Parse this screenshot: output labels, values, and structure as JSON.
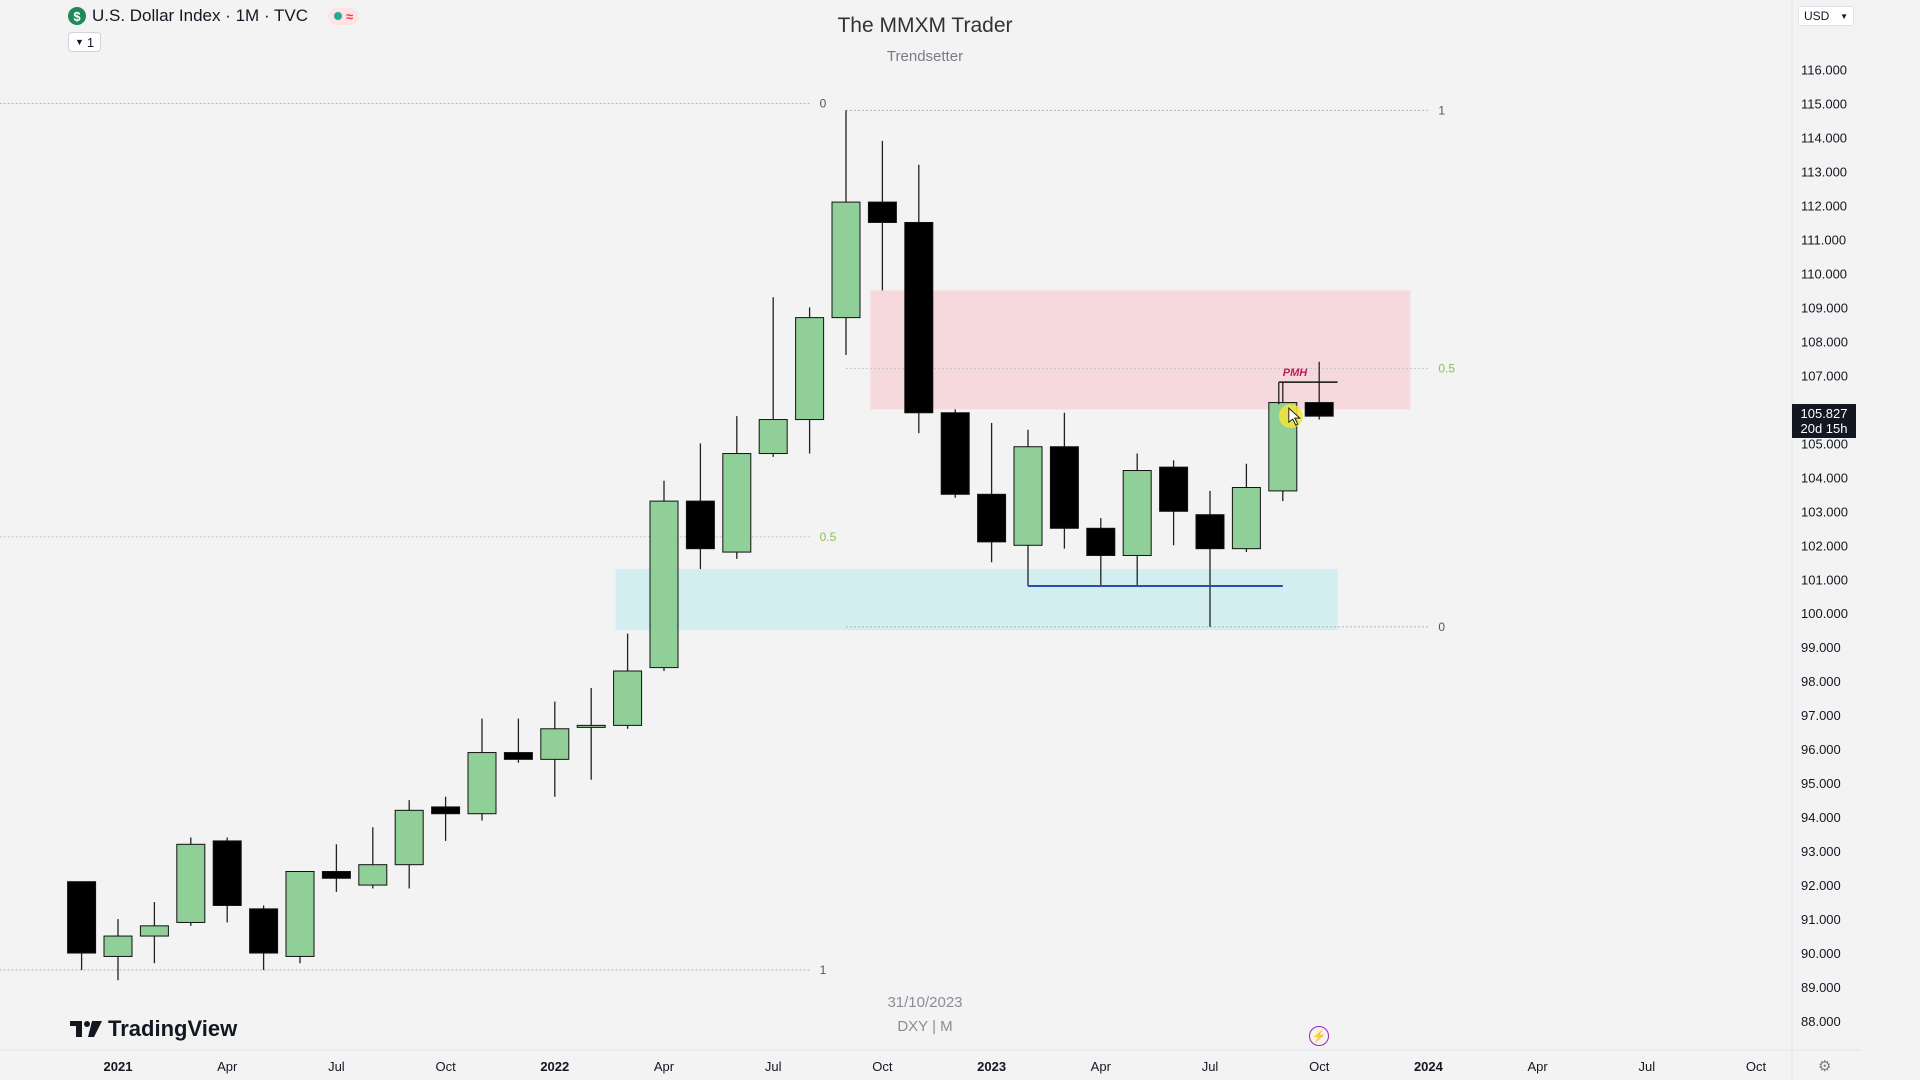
{
  "header": {
    "symbol_badge": "$",
    "title": "U.S. Dollar Index · 1M · TVC",
    "collapse_label": "1"
  },
  "watermark": {
    "title": "The MMXM Trader",
    "subtitle": "Trendsetter",
    "date": "31/10/2023",
    "symbol": "DXY | M"
  },
  "brand": {
    "logo_text": "TradingView"
  },
  "currency_select": {
    "value": "USD"
  },
  "price_tag": {
    "price": "105.827",
    "countdown": "20d 15h"
  },
  "colors": {
    "bull": "#91cf99",
    "bear": "#000000",
    "premium_zone": "#f6d9dc",
    "discount_zone": "#d3eef0",
    "fib_level": "#8bc34a",
    "low_line": "#2a4ea8",
    "pmh_label": "#c2185b"
  },
  "chart_data": {
    "type": "candlestick",
    "title": "",
    "xlabel": "",
    "ylabel": "",
    "ylim": [
      87.5,
      116.8
    ],
    "y_ticks": [
      "116.000",
      "115.000",
      "114.000",
      "113.000",
      "112.000",
      "111.000",
      "110.000",
      "109.000",
      "108.000",
      "107.000",
      "106.000",
      "105.000",
      "104.000",
      "103.000",
      "102.000",
      "101.000",
      "100.000",
      "99.000",
      "98.000",
      "97.000",
      "96.000",
      "95.000",
      "94.000",
      "93.000",
      "92.000",
      "91.000",
      "90.000",
      "89.000",
      "88.000"
    ],
    "x_ticks": [
      {
        "label": "2021",
        "date": "2021-01",
        "bold": true
      },
      {
        "label": "Apr",
        "date": "2021-04"
      },
      {
        "label": "Jul",
        "date": "2021-07"
      },
      {
        "label": "Oct",
        "date": "2021-10"
      },
      {
        "label": "2022",
        "date": "2022-01",
        "bold": true
      },
      {
        "label": "Apr",
        "date": "2022-04"
      },
      {
        "label": "Jul",
        "date": "2022-07"
      },
      {
        "label": "Oct",
        "date": "2022-10"
      },
      {
        "label": "2023",
        "date": "2023-01",
        "bold": true
      },
      {
        "label": "Apr",
        "date": "2023-04"
      },
      {
        "label": "Jul",
        "date": "2023-07"
      },
      {
        "label": "Oct",
        "date": "2023-10"
      },
      {
        "label": "2024",
        "date": "2024-01",
        "bold": true
      },
      {
        "label": "Apr",
        "date": "2024-04"
      },
      {
        "label": "Jul",
        "date": "2024-07"
      },
      {
        "label": "Oct",
        "date": "2024-10"
      }
    ],
    "candles": [
      {
        "date": "2020-12",
        "o": 92.1,
        "h": 92.1,
        "l": 89.5,
        "c": 90.0
      },
      {
        "date": "2021-01",
        "o": 89.9,
        "h": 91.0,
        "l": 89.2,
        "c": 90.5
      },
      {
        "date": "2021-02",
        "o": 90.5,
        "h": 91.5,
        "l": 89.7,
        "c": 90.8
      },
      {
        "date": "2021-03",
        "o": 90.9,
        "h": 93.4,
        "l": 90.8,
        "c": 93.2
      },
      {
        "date": "2021-04",
        "o": 93.3,
        "h": 93.4,
        "l": 90.9,
        "c": 91.4
      },
      {
        "date": "2021-05",
        "o": 91.3,
        "h": 91.4,
        "l": 89.5,
        "c": 90.0
      },
      {
        "date": "2021-06",
        "o": 89.9,
        "h": 92.4,
        "l": 89.7,
        "c": 92.4
      },
      {
        "date": "2021-07",
        "o": 92.4,
        "h": 93.2,
        "l": 91.8,
        "c": 92.2
      },
      {
        "date": "2021-08",
        "o": 92.0,
        "h": 93.7,
        "l": 91.9,
        "c": 92.6
      },
      {
        "date": "2021-09",
        "o": 92.6,
        "h": 94.5,
        "l": 91.9,
        "c": 94.2
      },
      {
        "date": "2021-10",
        "o": 94.3,
        "h": 94.6,
        "l": 93.3,
        "c": 94.1
      },
      {
        "date": "2021-11",
        "o": 94.1,
        "h": 96.9,
        "l": 93.9,
        "c": 95.9
      },
      {
        "date": "2021-12",
        "o": 95.9,
        "h": 96.9,
        "l": 95.6,
        "c": 95.7
      },
      {
        "date": "2022-01",
        "o": 95.7,
        "h": 97.4,
        "l": 94.6,
        "c": 96.6
      },
      {
        "date": "2022-02",
        "o": 96.7,
        "h": 97.8,
        "l": 95.1,
        "c": 96.7
      },
      {
        "date": "2022-03",
        "o": 96.7,
        "h": 99.4,
        "l": 96.6,
        "c": 98.3
      },
      {
        "date": "2022-04",
        "o": 98.4,
        "h": 103.9,
        "l": 98.3,
        "c": 103.3
      },
      {
        "date": "2022-05",
        "o": 103.3,
        "h": 105.0,
        "l": 101.3,
        "c": 101.9
      },
      {
        "date": "2022-06",
        "o": 101.8,
        "h": 105.8,
        "l": 101.6,
        "c": 104.7
      },
      {
        "date": "2022-07",
        "o": 104.7,
        "h": 109.3,
        "l": 104.6,
        "c": 105.7
      },
      {
        "date": "2022-08",
        "o": 105.7,
        "h": 109.0,
        "l": 104.7,
        "c": 108.7
      },
      {
        "date": "2022-09",
        "o": 108.7,
        "h": 114.8,
        "l": 107.6,
        "c": 112.1
      },
      {
        "date": "2022-10",
        "o": 112.1,
        "h": 113.9,
        "l": 109.5,
        "c": 111.5
      },
      {
        "date": "2022-11",
        "o": 111.5,
        "h": 113.2,
        "l": 105.3,
        "c": 105.9
      },
      {
        "date": "2022-12",
        "o": 105.9,
        "h": 106.0,
        "l": 103.4,
        "c": 103.5
      },
      {
        "date": "2023-01",
        "o": 103.5,
        "h": 105.6,
        "l": 101.5,
        "c": 102.1
      },
      {
        "date": "2023-02",
        "o": 102.0,
        "h": 105.4,
        "l": 100.8,
        "c": 104.9
      },
      {
        "date": "2023-03",
        "o": 104.9,
        "h": 105.9,
        "l": 101.9,
        "c": 102.5
      },
      {
        "date": "2023-04",
        "o": 102.5,
        "h": 102.8,
        "l": 100.8,
        "c": 101.7
      },
      {
        "date": "2023-05",
        "o": 101.7,
        "h": 104.7,
        "l": 100.8,
        "c": 104.2
      },
      {
        "date": "2023-06",
        "o": 104.3,
        "h": 104.5,
        "l": 102.0,
        "c": 103.0
      },
      {
        "date": "2023-07",
        "o": 102.9,
        "h": 103.6,
        "l": 99.6,
        "c": 101.9
      },
      {
        "date": "2023-08",
        "o": 101.9,
        "h": 104.4,
        "l": 101.8,
        "c": 103.7
      },
      {
        "date": "2023-09",
        "o": 103.6,
        "h": 106.8,
        "l": 103.3,
        "c": 106.2
      },
      {
        "date": "2023-10",
        "o": 106.2,
        "h": 107.4,
        "l": 105.7,
        "c": 105.8
      }
    ],
    "fib_retracements": [
      {
        "start": "2020-07",
        "end": "2022-08",
        "price_0": 115.0,
        "price_1": 89.5,
        "labels": [
          "0",
          "0.5",
          "1"
        ],
        "label_date": "2022-08"
      },
      {
        "start": "2022-09",
        "end": "2024-01",
        "price_1": 114.8,
        "price_0": 99.6,
        "labels": [
          "1",
          "0.5",
          "0"
        ],
        "label_date": "2024-01"
      }
    ],
    "zones": [
      {
        "name": "premium",
        "from": "2022-10",
        "to": "2024-01",
        "top": 109.5,
        "bottom": 106.0
      },
      {
        "name": "discount",
        "from": "2022-03",
        "to": "2023-11",
        "top": 101.3,
        "bottom": 99.5
      }
    ],
    "horizontal_lines": [
      {
        "name": "equal-lows",
        "from": "2023-02",
        "to": "2023-09",
        "price": 100.8
      }
    ],
    "annotations": [
      {
        "name": "PMH",
        "text": "PMH",
        "from": "2023-09",
        "to": "2023-11",
        "price": 106.8
      }
    ]
  }
}
